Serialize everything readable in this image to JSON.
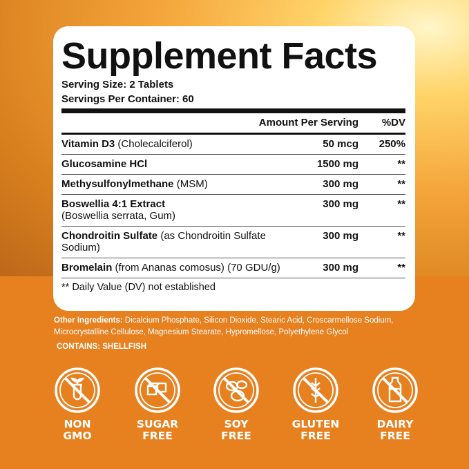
{
  "title": "Supplement Facts",
  "serving_size": "Serving Size: 2 Tablets",
  "servings_per_container": "Servings Per Container: 60",
  "header": {
    "amount": "Amount Per Serving",
    "dv": "%DV"
  },
  "rows": [
    {
      "name": "Vitamin D3",
      "detail": "(Cholecalciferol)",
      "amount": "50 mcg",
      "dv": "250%"
    },
    {
      "name": "Glucosamine HCl",
      "detail": "",
      "amount": "1500 mg",
      "dv": "**"
    },
    {
      "name": "Methysulfonylmethane",
      "detail": "(MSM)",
      "amount": "300 mg",
      "dv": "**"
    },
    {
      "name": "Boswellia 4:1 Extract",
      "detail": "(Boswellia serrata, Gum)",
      "amount": "300 mg",
      "dv": "**"
    },
    {
      "name": "Chondroitin Sulfate",
      "detail": "(as Chondroitin Sulfate Sodium)",
      "amount": "300 mg",
      "dv": "**"
    },
    {
      "name": "Bromelain",
      "detail": "(from Ananas comosus) (70 GDU/g)",
      "amount": "300 mg",
      "dv": "**"
    }
  ],
  "footnote": "** Daily Value (DV) not established",
  "other_label": "Other Ingredients:",
  "other_text": "Dicalcium Phosphate, Silicon Dioxide, Stearic Acid, Croscarmellose Sodium, Microcrystalline Cellulose, Magnesium Stearate, Hypromellose, Polyethylene Glycol",
  "contains": "CONTAINS: SHELLFISH",
  "badges": [
    {
      "icon": "no-gmo-icon",
      "l1": "NON",
      "l2": "GMO"
    },
    {
      "icon": "no-sugar-icon",
      "l1": "SUGAR",
      "l2": "FREE"
    },
    {
      "icon": "no-soy-icon",
      "l1": "SOY",
      "l2": "FREE"
    },
    {
      "icon": "no-gluten-icon",
      "l1": "GLUTEN",
      "l2": "FREE"
    },
    {
      "icon": "no-dairy-icon",
      "l1": "DAIRY",
      "l2": "FREE"
    }
  ],
  "colors": {
    "orange": "#e7801f",
    "text": "#111111"
  }
}
